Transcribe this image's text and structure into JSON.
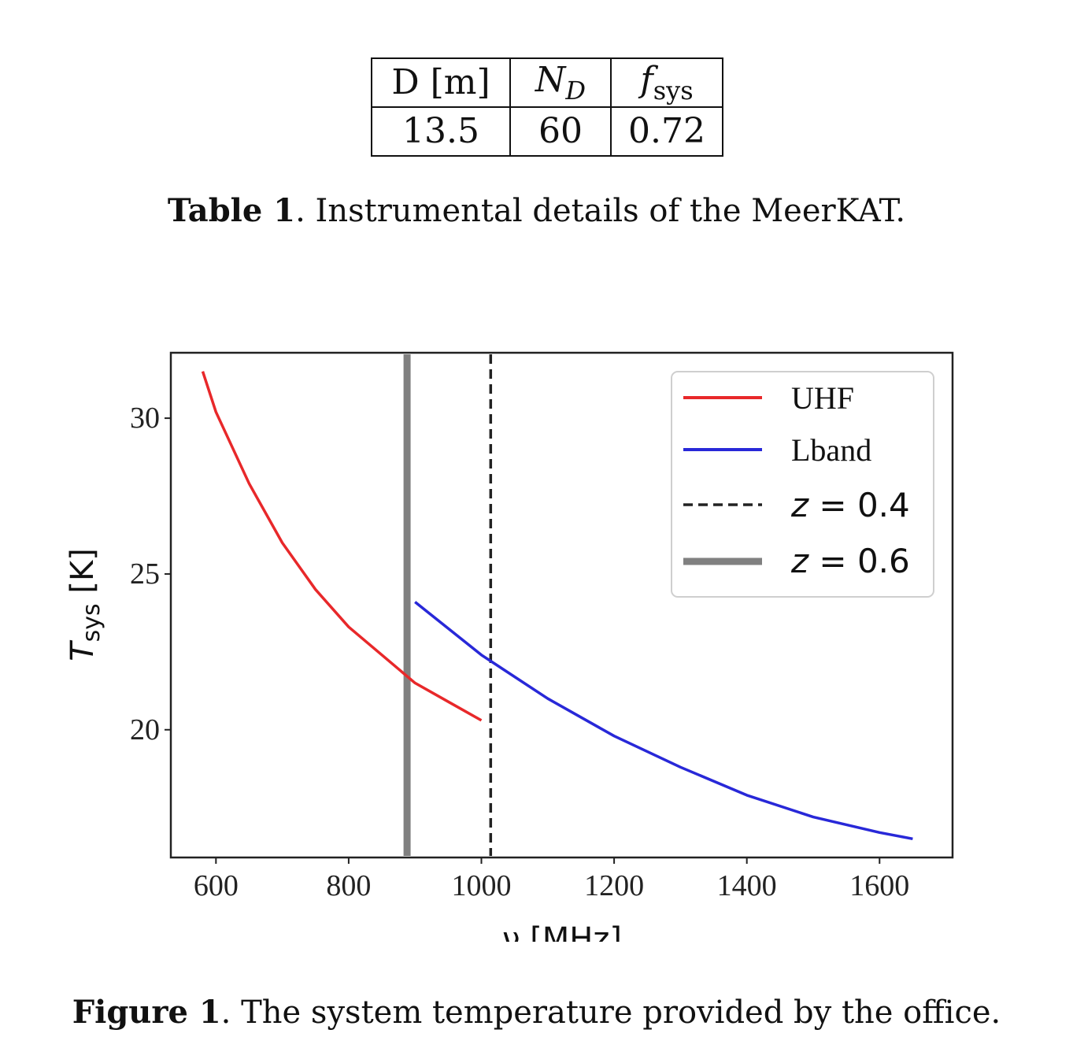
{
  "table": {
    "headers": {
      "d": "D [m]",
      "nd_main": "N",
      "nd_sub": "D",
      "fsys_main": "f",
      "fsys_sub": "sys"
    },
    "values": {
      "d": "13.5",
      "nd": "60",
      "fsys": "0.72"
    }
  },
  "table_caption": {
    "label": "Table 1",
    "text": ". Instrumental details of the MeerKAT."
  },
  "figure_caption": {
    "label": "Figure 1",
    "text": ". The system temperature provided by the office."
  },
  "chart_data": {
    "type": "line",
    "xlabel": "ν [MHz]",
    "ylabel_main": "T",
    "ylabel_sub": "sys",
    "ylabel_unit": " [K]",
    "xlim": [
      532,
      1710
    ],
    "ylim": [
      15.9,
      32.1
    ],
    "xticks": [
      "600",
      "800",
      "1000",
      "1200",
      "1400",
      "1600"
    ],
    "yticks": [
      "20",
      "25",
      "30"
    ],
    "xtick_values": [
      600,
      800,
      1000,
      1200,
      1400,
      1600
    ],
    "ytick_values": [
      20,
      25,
      30
    ],
    "legend_position": "top-right",
    "series": [
      {
        "name": "UHF",
        "color": "#e8282a",
        "style": "solid",
        "x": [
          580,
          600,
          650,
          700,
          750,
          800,
          850,
          900,
          950,
          1000
        ],
        "y": [
          31.5,
          30.2,
          27.9,
          26.0,
          24.5,
          23.3,
          22.4,
          21.5,
          20.9,
          20.3
        ]
      },
      {
        "name": "Lband",
        "color": "#2828d8",
        "style": "solid",
        "x": [
          900,
          1000,
          1100,
          1200,
          1300,
          1400,
          1500,
          1600,
          1650
        ],
        "y": [
          24.1,
          22.4,
          21.0,
          19.8,
          18.8,
          17.9,
          17.2,
          16.7,
          16.5
        ]
      }
    ],
    "vlines": [
      {
        "name_prefix": "z",
        "name_eq": " = ",
        "name_value": "0.4",
        "x": 1014,
        "color": "#222222",
        "style": "dashed"
      },
      {
        "name_prefix": "z",
        "name_eq": " = ",
        "name_value": "0.6",
        "x": 888,
        "color": "#808080",
        "style": "solid-thick"
      }
    ]
  }
}
